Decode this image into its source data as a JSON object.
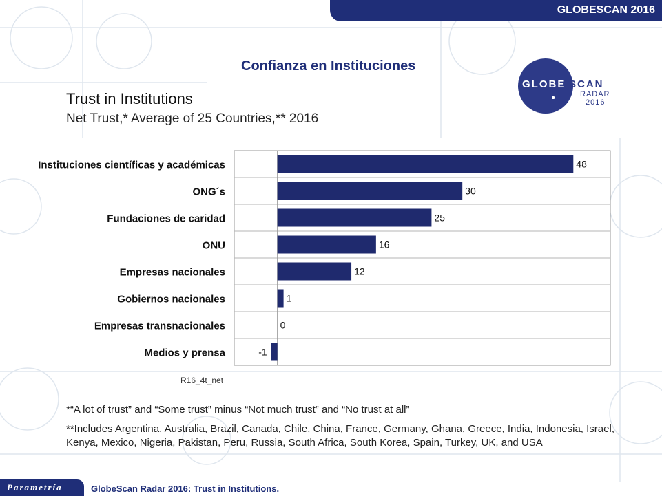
{
  "header": {
    "badge": "GLOBESCAN 2016"
  },
  "slide": {
    "spanish_title": "Confianza en Instituciones",
    "title": "Trust in Institutions",
    "subtitle": "Net Trust,* Average of 25 Countries,** 2016",
    "source_code": "R16_4t_net"
  },
  "logo": {
    "word_left": "GLOBE",
    "word_right": "SCAN",
    "line2": "RADAR",
    "line3": "2016",
    "color": "#2d3a88"
  },
  "chart_data": {
    "type": "bar",
    "orientation": "horizontal",
    "categories": [
      "Instituciones científicas y académicas",
      "ONG´s",
      "Fundaciones de caridad",
      "ONU",
      "Empresas nacionales",
      "Gobiernos nacionales",
      "Empresas transnacionales",
      "Medios y prensa"
    ],
    "values": [
      48,
      30,
      25,
      16,
      12,
      1,
      0,
      -1
    ],
    "value_labels": [
      "48",
      "30",
      "25",
      "16",
      "12",
      "1",
      "0",
      "-1"
    ],
    "xlim": [
      -7,
      54
    ],
    "grid": "horizontal row separators",
    "bar_color": "#1f2a6e"
  },
  "footnotes": {
    "line1": "*“A lot of trust” and “Some trust” minus “Not much trust” and “No trust at all”",
    "line2": "**Includes Argentina, Australia, Brazil, Canada, Chile, China, France, Germany, Ghana, Greece, India, Indonesia, Israel, Kenya, Mexico, Nigeria, Pakistan, Peru, Russia, South Africa, South Korea, Spain, Turkey, UK, and USA"
  },
  "footer": {
    "brand": "Parametría",
    "caption": "GlobeScan Radar 2016: Trust in Institutions."
  },
  "colors": {
    "brand_navy": "#1f2e78"
  }
}
